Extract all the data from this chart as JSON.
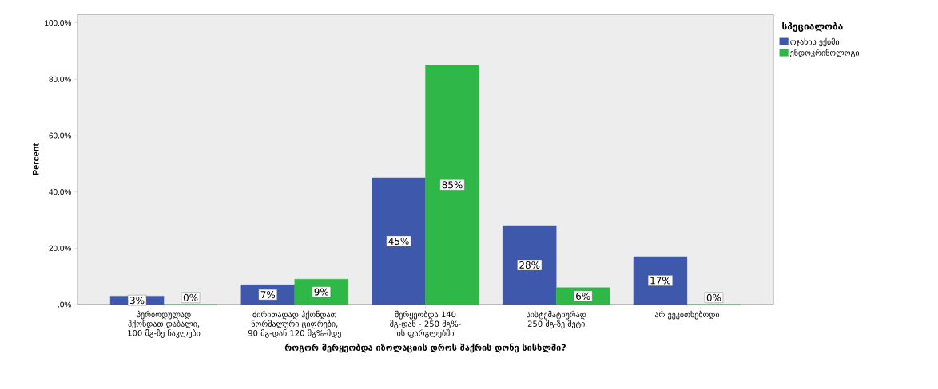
{
  "chart_data": {
    "type": "bar",
    "xlabel": "როგორ მერყეობდა იზოლაციის დროს შაქრის დონე სისხლში?",
    "ylabel": "Percent",
    "legend_title": "სპეციალობა",
    "categories": [
      "პერიოდულად ჰქონდათ დაბალი, 100 მგ-ზე ნაკლები",
      "ძირითადად ჰქონდათ ნორმალური ციფრები, 90 მგ-დან 120 მგ%-მდე",
      "მერყეობდა 140 მგ-დან - 250 მგ%-ის ფარგლებში",
      "სისტემატიურად 250 მგ-ზე მეტი",
      "არ ვეკითხებოდი"
    ],
    "series": [
      {
        "name": "ოჯახის ექიმი",
        "color": "#3e58ac",
        "values": [
          3,
          7,
          45,
          28,
          17
        ],
        "value_labels": [
          "3%",
          "7%",
          "45%",
          "28%",
          "17%"
        ]
      },
      {
        "name": "ენდოკრინოლოგი",
        "color": "#2fb847",
        "values": [
          0,
          9,
          85,
          6,
          0
        ],
        "value_labels": [
          "0%",
          "9%",
          "85%",
          "6%",
          "0%"
        ]
      }
    ],
    "ylim": [
      0,
      103
    ],
    "yticks": [
      {
        "value": 0,
        "label": ".0%"
      },
      {
        "value": 20,
        "label": "20.0%"
      },
      {
        "value": 40,
        "label": "40.0%"
      },
      {
        "value": 60,
        "label": "60.0%"
      },
      {
        "value": 80,
        "label": "80.0%"
      },
      {
        "value": 100,
        "label": "100.0%"
      }
    ],
    "legend": "right"
  }
}
